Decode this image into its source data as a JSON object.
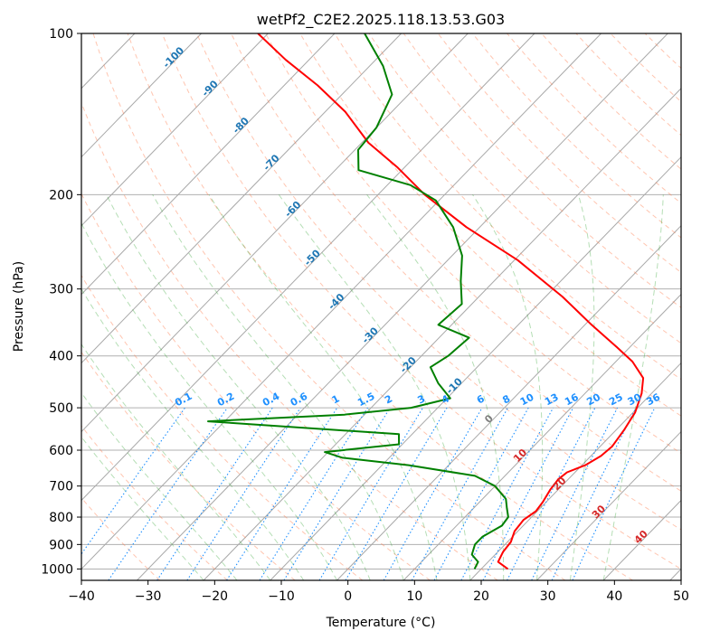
{
  "chart_data": {
    "type": "line",
    "subtype": "skew-t log-p diagram",
    "title": "wetPf2_C2E2.2025.118.13.53.G03",
    "xlabel": "Temperature (°C)",
    "ylabel": "Pressure (hPa)",
    "xlim": [
      -40,
      50
    ],
    "ylim": [
      1050,
      100
    ],
    "y_scale": "log",
    "grid": true,
    "x_ticks": [
      "−40",
      "−30",
      "−20",
      "−10",
      "0",
      "10",
      "20",
      "30",
      "40",
      "50"
    ],
    "x_tick_values": [
      -40,
      -30,
      -20,
      -10,
      0,
      10,
      20,
      30,
      40,
      50
    ],
    "y_ticks": [
      "100",
      "200",
      "300",
      "400",
      "500",
      "600",
      "700",
      "800",
      "900",
      "1000"
    ],
    "y_tick_values": [
      100,
      200,
      300,
      400,
      500,
      600,
      700,
      800,
      900,
      1000
    ],
    "isotherm_labels": [
      "-100",
      "-90",
      "-80",
      "-70",
      "-60",
      "-50",
      "-40",
      "-30",
      "-20",
      "-10"
    ],
    "isotherm_values": [
      -100,
      -90,
      -80,
      -70,
      -60,
      -50,
      -40,
      -30,
      -20,
      -10
    ],
    "mixing_ratio_labels": [
      "0.1",
      "0.2",
      "0.4",
      "0.6",
      "1",
      "1.5",
      "2",
      "3",
      "4",
      "6",
      "8",
      "10",
      "13",
      "16",
      "20",
      "25",
      "30",
      "36"
    ],
    "isotherm_extra_labels": [
      "0",
      "10",
      "20",
      "30",
      "40"
    ],
    "colors": {
      "temperature": "#ff0000",
      "dewpoint": "#008000",
      "isotherm_label": "#1f77b4",
      "mixing_ratio": "#1e90ff",
      "dry_adiabat": "#ff7f50",
      "moist_adiabat": "#2ca02c",
      "warm_label": "#d62728",
      "zero_label": "#808080"
    },
    "series": [
      {
        "name": "Temperature",
        "points": [
          [
            24.0,
            1000
          ],
          [
            21.5,
            970
          ],
          [
            20.8,
            930
          ],
          [
            20.5,
            890
          ],
          [
            19.5,
            850
          ],
          [
            19.2,
            810
          ],
          [
            19.8,
            780
          ],
          [
            19.5,
            750
          ],
          [
            18.8,
            710
          ],
          [
            18.5,
            680
          ],
          [
            18.8,
            660
          ],
          [
            20.5,
            640
          ],
          [
            21.5,
            615
          ],
          [
            21.8,
            590
          ],
          [
            21.2,
            550
          ],
          [
            20.3,
            510
          ],
          [
            18.5,
            470
          ],
          [
            16.5,
            440
          ],
          [
            12.5,
            410
          ],
          [
            8.0,
            385
          ],
          [
            1.0,
            350
          ],
          [
            -7.5,
            310
          ],
          [
            -19.5,
            265
          ],
          [
            -32.0,
            230
          ],
          [
            -43.0,
            200
          ],
          [
            -51.0,
            178
          ],
          [
            -59.0,
            160
          ],
          [
            -67.0,
            140
          ],
          [
            -75.0,
            125
          ],
          [
            -83.5,
            112
          ],
          [
            -91.5,
            100
          ]
        ]
      },
      {
        "name": "Dewpoint",
        "points": [
          [
            19.0,
            1000
          ],
          [
            18.5,
            970
          ],
          [
            16.5,
            940
          ],
          [
            15.5,
            900
          ],
          [
            15.5,
            870
          ],
          [
            16.8,
            830
          ],
          [
            16.5,
            800
          ],
          [
            15.0,
            770
          ],
          [
            13.5,
            740
          ],
          [
            10.0,
            700
          ],
          [
            5.5,
            670
          ],
          [
            -6.0,
            640
          ],
          [
            -17.0,
            620
          ],
          [
            -20.5,
            605
          ],
          [
            -10.5,
            585
          ],
          [
            -12.0,
            560
          ],
          [
            -42.5,
            530
          ],
          [
            -23.0,
            515
          ],
          [
            -14.0,
            500
          ],
          [
            -9.5,
            480
          ],
          [
            -13.5,
            450
          ],
          [
            -17.0,
            420
          ],
          [
            -16.0,
            400
          ],
          [
            -15.5,
            370
          ],
          [
            -22.0,
            350
          ],
          [
            -21.5,
            320
          ],
          [
            -25.0,
            290
          ],
          [
            -28.5,
            260
          ],
          [
            -34.0,
            230
          ],
          [
            -40.5,
            205
          ],
          [
            -46.5,
            192
          ],
          [
            -56.5,
            180
          ],
          [
            -59.5,
            165
          ],
          [
            -60.0,
            150
          ],
          [
            -62.5,
            130
          ],
          [
            -68.0,
            115
          ],
          [
            -75.5,
            100
          ]
        ]
      }
    ]
  }
}
